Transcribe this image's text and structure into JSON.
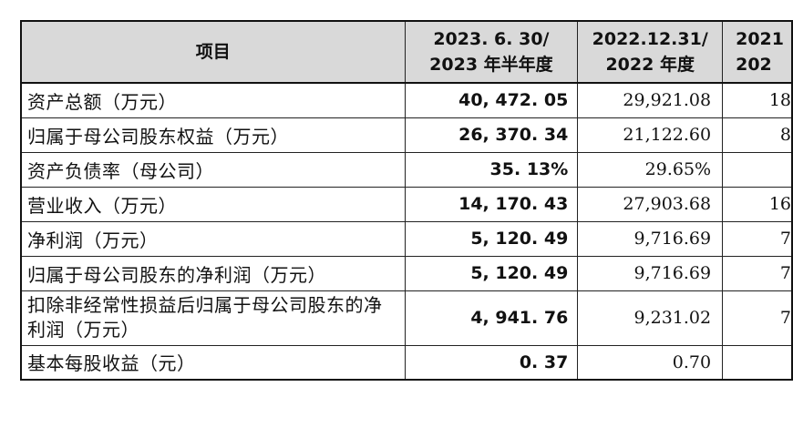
{
  "table": {
    "headers": {
      "item": "项目",
      "col1_line1": "2023. 6. 30/",
      "col1_line2": "2023 年半年度",
      "col2_line1": "2022.12.31/",
      "col2_line2": "2022 年度",
      "col3_line1": "2021",
      "col3_line2": "202"
    },
    "rows": [
      {
        "label": "资产总额（万元）",
        "v1": "40, 472. 05",
        "v2": "29,921.08",
        "v3": "18"
      },
      {
        "label": "归属于母公司股东权益（万元）",
        "v1": "26, 370. 34",
        "v2": "21,122.60",
        "v3": "8"
      },
      {
        "label": "资产负债率（母公司）",
        "v1": "35. 13%",
        "v2": "29.65%",
        "v3": ""
      },
      {
        "label": "营业收入（万元）",
        "v1": "14, 170. 43",
        "v2": "27,903.68",
        "v3": "16"
      },
      {
        "label": "净利润（万元）",
        "v1": "5, 120. 49",
        "v2": "9,716.69",
        "v3": "7"
      },
      {
        "label": "归属于母公司股东的净利润（万元）",
        "v1": "5, 120. 49",
        "v2": "9,716.69",
        "v3": "7"
      },
      {
        "label": "扣除非经常性损益后归属于母公司股东的净利润（万元）",
        "v1": "4, 941. 76",
        "v2": "9,231.02",
        "v3": "7"
      },
      {
        "label": "基本每股收益（元）",
        "v1": "0. 37",
        "v2": "0.70",
        "v3": ""
      }
    ]
  }
}
